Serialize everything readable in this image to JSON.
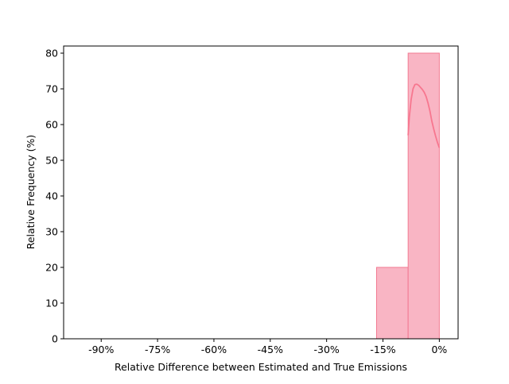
{
  "chart_data": {
    "type": "bar",
    "subtype": "histogram",
    "title": "",
    "xlabel": "Relative Difference between Estimated and True Emissions",
    "ylabel": "Relative Frequency (%)",
    "xlim": [
      -100,
      5
    ],
    "ylim": [
      0,
      82
    ],
    "x_ticks": [
      -90,
      -75,
      -60,
      -45,
      -30,
      -15,
      0
    ],
    "x_tick_labels": [
      "-90%",
      "-75%",
      "-60%",
      "-45%",
      "-30%",
      "-15%",
      "0%"
    ],
    "y_ticks": [
      0,
      10,
      20,
      30,
      40,
      50,
      60,
      70,
      80
    ],
    "y_tick_labels": [
      "0",
      "10",
      "20",
      "30",
      "40",
      "50",
      "60",
      "70",
      "80"
    ],
    "bins": [
      {
        "x0": -100,
        "x1": -91.7,
        "value": 0
      },
      {
        "x0": -91.7,
        "x1": -83.3,
        "value": 0
      },
      {
        "x0": -83.3,
        "x1": -75.0,
        "value": 0
      },
      {
        "x0": -75.0,
        "x1": -66.7,
        "value": 0
      },
      {
        "x0": -66.7,
        "x1": -58.3,
        "value": 0
      },
      {
        "x0": -58.3,
        "x1": -50.0,
        "value": 0
      },
      {
        "x0": -50.0,
        "x1": -41.7,
        "value": 0
      },
      {
        "x0": -41.7,
        "x1": -33.3,
        "value": 0
      },
      {
        "x0": -33.3,
        "x1": -25.0,
        "value": 0
      },
      {
        "x0": -25.0,
        "x1": -16.7,
        "value": 0
      },
      {
        "x0": -16.7,
        "x1": -8.3,
        "value": 20
      },
      {
        "x0": -8.3,
        "x1": 0,
        "value": 80
      }
    ],
    "kde_curve": {
      "x": [
        -8.3,
        -8.0,
        -7.5,
        -7.0,
        -6.5,
        -6.0,
        -5.5,
        -5.0,
        -4.5,
        -4.0,
        -3.5,
        -3.0,
        -2.5,
        -2.0,
        -1.5,
        -1.0,
        -0.5,
        0
      ],
      "y": [
        57,
        62,
        67,
        70,
        71.2,
        71.3,
        71.0,
        70.4,
        69.8,
        69.0,
        67.8,
        66.0,
        63.8,
        61.0,
        58.8,
        56.8,
        55.0,
        53.5
      ]
    },
    "colors": {
      "bar_fill": "#f9b5c4",
      "bar_edge": "#f27a92",
      "kde_line": "#f7778f"
    },
    "grid": false,
    "legend": "none"
  }
}
